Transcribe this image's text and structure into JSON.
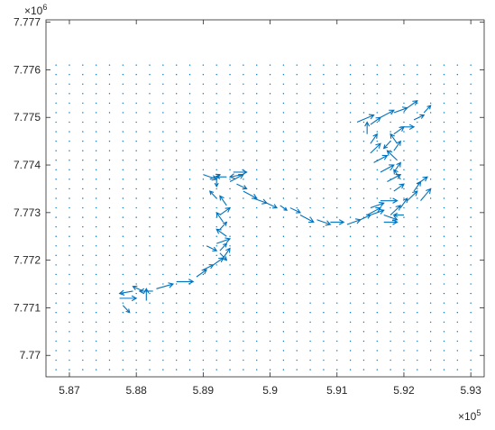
{
  "chart_data": {
    "type": "quiver",
    "xlim": [
      586650,
      593200
    ],
    "ylim": [
      7769550,
      7777050
    ],
    "xticks": [
      587000,
      588000,
      589000,
      590000,
      591000,
      592000,
      593000
    ],
    "yticks": [
      7770000,
      7771000,
      7772000,
      7773000,
      7774000,
      7775000,
      7776000,
      7777000
    ],
    "xtick_labels": [
      "5.87",
      "5.88",
      "5.89",
      "5.9",
      "5.91",
      "5.92",
      "5.93"
    ],
    "ytick_labels": [
      "7.77",
      "7.771",
      "7.772",
      "7.773",
      "7.774",
      "7.775",
      "7.776",
      "7.777"
    ],
    "x_exponent_label": "×10^5",
    "y_exponent_label": "×10^6",
    "grid": false,
    "box": true,
    "series_color": "#0072bd",
    "point_grid": {
      "x_start": 586800,
      "x_step": 200,
      "x_count": 32,
      "y_start": 7769700,
      "y_step": 200,
      "y_count": 33
    },
    "arrows": [
      [
        587750,
        7771200,
        250,
        0
      ],
      [
        587950,
        7771350,
        -200,
        -50
      ],
      [
        588100,
        7771350,
        -150,
        100
      ],
      [
        588250,
        7771350,
        -200,
        0
      ],
      [
        587800,
        7771050,
        100,
        -150
      ],
      [
        588150,
        7771150,
        0,
        250
      ],
      [
        588300,
        7771400,
        250,
        100
      ],
      [
        588600,
        7771550,
        250,
        0
      ],
      [
        588900,
        7771650,
        150,
        150
      ],
      [
        589000,
        7771800,
        150,
        100
      ],
      [
        589150,
        7771900,
        150,
        150
      ],
      [
        589300,
        7772050,
        100,
        200
      ],
      [
        589250,
        7772200,
        100,
        150
      ],
      [
        589200,
        7772350,
        200,
        100
      ],
      [
        589350,
        7772500,
        -150,
        150
      ],
      [
        589250,
        7772650,
        100,
        150
      ],
      [
        589300,
        7772800,
        -100,
        200
      ],
      [
        589250,
        7772950,
        150,
        150
      ],
      [
        589350,
        7773150,
        -100,
        200
      ],
      [
        589200,
        7773300,
        -100,
        150
      ],
      [
        589100,
        7773700,
        150,
        100
      ],
      [
        589200,
        7773750,
        0,
        -200
      ],
      [
        589350,
        7773750,
        -150,
        0
      ],
      [
        589400,
        7773650,
        200,
        150
      ],
      [
        589500,
        7773600,
        150,
        -100
      ],
      [
        589600,
        7773450,
        200,
        -150
      ],
      [
        589750,
        7773300,
        200,
        -100
      ],
      [
        589950,
        7773200,
        150,
        -100
      ],
      [
        590150,
        7773150,
        100,
        -100
      ],
      [
        590300,
        7773100,
        150,
        -100
      ],
      [
        590450,
        7772950,
        200,
        -150
      ],
      [
        590700,
        7772850,
        200,
        -100
      ],
      [
        590900,
        7772800,
        200,
        0
      ],
      [
        591150,
        7772750,
        200,
        100
      ],
      [
        591350,
        7772850,
        150,
        100
      ],
      [
        591500,
        7772950,
        200,
        100
      ],
      [
        591700,
        7772800,
        200,
        0
      ],
      [
        591800,
        7772950,
        150,
        200
      ],
      [
        591950,
        7773100,
        100,
        200
      ],
      [
        592050,
        7773250,
        150,
        200
      ],
      [
        592150,
        7773450,
        100,
        200
      ],
      [
        592200,
        7773600,
        150,
        150
      ],
      [
        591950,
        7773700,
        -100,
        200
      ],
      [
        591850,
        7773850,
        100,
        200
      ],
      [
        591900,
        7774100,
        -150,
        200
      ],
      [
        591850,
        7774300,
        100,
        200
      ],
      [
        591900,
        7774450,
        -100,
        200
      ],
      [
        591850,
        7774650,
        150,
        150
      ],
      [
        591950,
        7774800,
        200,
        0
      ],
      [
        592150,
        7774950,
        150,
        100
      ],
      [
        592300,
        7775100,
        100,
        150
      ],
      [
        592050,
        7775200,
        150,
        150
      ],
      [
        591850,
        7775100,
        200,
        100
      ],
      [
        591650,
        7775000,
        200,
        150
      ],
      [
        591500,
        7774850,
        150,
        150
      ],
      [
        591450,
        7774650,
        0,
        250
      ],
      [
        591500,
        7774450,
        100,
        200
      ],
      [
        591500,
        7774250,
        150,
        200
      ],
      [
        591550,
        7774050,
        200,
        150
      ],
      [
        591650,
        7773850,
        200,
        150
      ],
      [
        591750,
        7773650,
        200,
        150
      ],
      [
        591850,
        7773450,
        150,
        150
      ],
      [
        591650,
        7773250,
        250,
        0
      ],
      [
        591500,
        7773100,
        200,
        100
      ],
      [
        591450,
        7772950,
        200,
        150
      ],
      [
        591700,
        7772950,
        200,
        -100
      ],
      [
        592000,
        7772950,
        -150,
        0
      ],
      [
        592250,
        7773250,
        150,
        250
      ],
      [
        591800,
        7774500,
        -100,
        -150
      ],
      [
        589050,
        7772300,
        150,
        -100
      ],
      [
        589250,
        7772150,
        100,
        -150
      ],
      [
        589000,
        7773800,
        200,
        -100
      ],
      [
        589450,
        7773850,
        200,
        0
      ],
      [
        589600,
        7773800,
        -200,
        -50
      ],
      [
        591300,
        7774900,
        250,
        150
      ]
    ]
  }
}
